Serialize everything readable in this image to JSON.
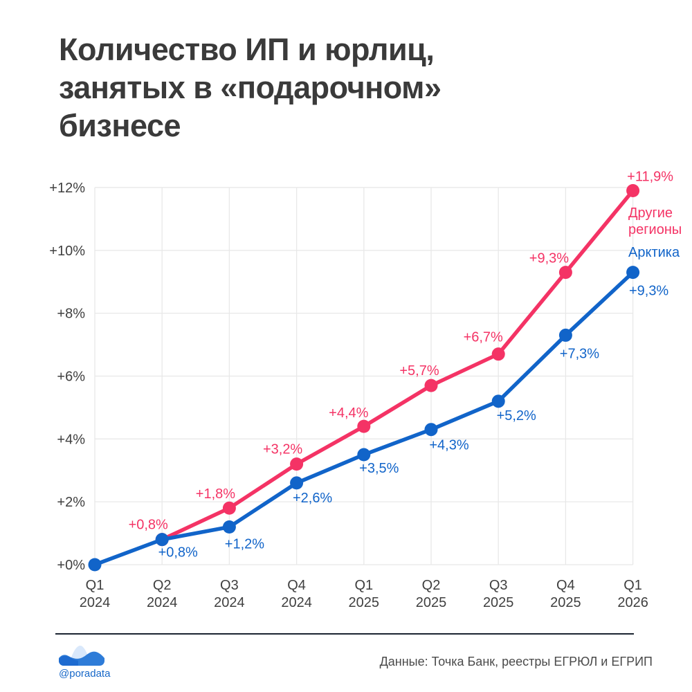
{
  "title": "Количество ИП и юрлиц, занятых в «подарочном» бизнесе",
  "title_lines": [
    "Количество ИП и юрлиц,",
    "занятых в «подарочном»",
    "бизнесе"
  ],
  "colors": {
    "pink": "#f43365",
    "blue": "#1164c9",
    "axis_text": "#3f3f3f",
    "grid": "#e8e8e8",
    "title_text": "#3a3a3a",
    "divider": "#1b2430",
    "handle_blue": "#1667c8",
    "logo_light_blue": "#d9e8fb",
    "logo_mid_blue": "#2e7cd8",
    "logo_dark_blue": "#1e6bd0"
  },
  "chart_data": {
    "type": "line",
    "title": "Количество ИП и юрлиц, занятых в «подарочном» бизнесе",
    "xlabel": "",
    "ylabel": "",
    "ylim": [
      0,
      12
    ],
    "grid": true,
    "legend_position": "right-inline",
    "x": [
      "Q1 2024",
      "Q2 2024",
      "Q3 2024",
      "Q4 2024",
      "Q1 2025",
      "Q2 2025",
      "Q3 2025",
      "Q4 2025",
      "Q1 2026"
    ],
    "x_ticks": [
      [
        "Q1",
        "2024"
      ],
      [
        "Q2",
        "2024"
      ],
      [
        "Q3",
        "2024"
      ],
      [
        "Q4",
        "2024"
      ],
      [
        "Q1",
        "2025"
      ],
      [
        "Q2",
        "2025"
      ],
      [
        "Q3",
        "2025"
      ],
      [
        "Q4",
        "2025"
      ],
      [
        "Q1",
        "2026"
      ]
    ],
    "ytick_values": [
      0,
      2,
      4,
      6,
      8,
      10,
      12
    ],
    "ytick_labels": [
      "+0%",
      "+2%",
      "+4%",
      "+6%",
      "+8%",
      "+10%",
      "+12%"
    ],
    "series": [
      {
        "name": "Другие регионы",
        "color": "#f43365",
        "values": [
          null,
          0.8,
          1.8,
          3.2,
          4.4,
          5.7,
          6.7,
          9.3,
          11.9
        ],
        "point_labels": [
          null,
          {
            "text": "+0,8%",
            "dx": -20,
            "dy": -15
          },
          {
            "text": "+1,8%",
            "dx": -20,
            "dy": -14
          },
          {
            "text": "+3,2%",
            "dx": -20,
            "dy": -15
          },
          {
            "text": "+4,4%",
            "dx": -22,
            "dy": -13
          },
          {
            "text": "+5,7%",
            "dx": -17,
            "dy": -15
          },
          {
            "text": "+6,7%",
            "dx": -22,
            "dy": -18
          },
          {
            "text": "+9,3%",
            "dx": -24,
            "dy": -14
          },
          {
            "text": "+11,9%",
            "dx": 25,
            "dy": -14
          }
        ]
      },
      {
        "name": "Арктика",
        "color": "#1164c9",
        "values": [
          0,
          0.8,
          1.2,
          2.6,
          3.5,
          4.3,
          5.2,
          7.3,
          9.3
        ],
        "point_labels": [
          null,
          {
            "text": "+0,8%",
            "dx": 23,
            "dy": 25
          },
          {
            "text": "+1,2%",
            "dx": 22,
            "dy": 31
          },
          {
            "text": "+2,6%",
            "dx": 23,
            "dy": 28
          },
          {
            "text": "+3,5%",
            "dx": 22,
            "dy": 26
          },
          {
            "text": "+4,3%",
            "dx": 26,
            "dy": 29
          },
          {
            "text": "+5,2%",
            "dx": 26,
            "dy": 27
          },
          {
            "text": "+7,3%",
            "dx": 20,
            "dy": 33
          },
          {
            "text": "+9,3%",
            "dx": 23,
            "dy": 33
          }
        ]
      }
    ],
    "annotations": [
      {
        "series": "Другие регионы",
        "lines": [
          "Другие",
          "регионы"
        ],
        "x": 908,
        "y": 314,
        "line_height": 24,
        "color": "#f43365"
      },
      {
        "series": "Арктика",
        "lines": [
          "Арктика"
        ],
        "x": 908,
        "y": 371,
        "line_height": 24,
        "color": "#1164c9"
      }
    ]
  },
  "footer": {
    "source": "Данные: Точка Банк, реестры ЕГРЮЛ и ЕГРИП",
    "handle": "@poradata",
    "logo": "poradata-waves-logo"
  }
}
